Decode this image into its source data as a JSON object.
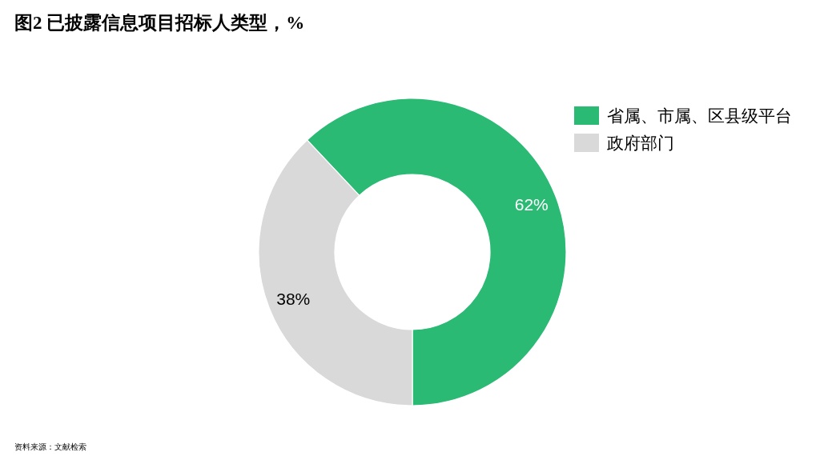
{
  "chart_data": {
    "type": "donut",
    "title": "图2 已披露信息项目招标人类型，%",
    "categories": [
      "省属、市属、区县级平台",
      "政府部门"
    ],
    "values": [
      62,
      38
    ],
    "colors": [
      "#2bba74",
      "#d9d9d9"
    ],
    "value_labels": [
      "62%",
      "38%"
    ],
    "legend": "right",
    "annotations": [
      "资料来源：文献检索"
    ]
  }
}
